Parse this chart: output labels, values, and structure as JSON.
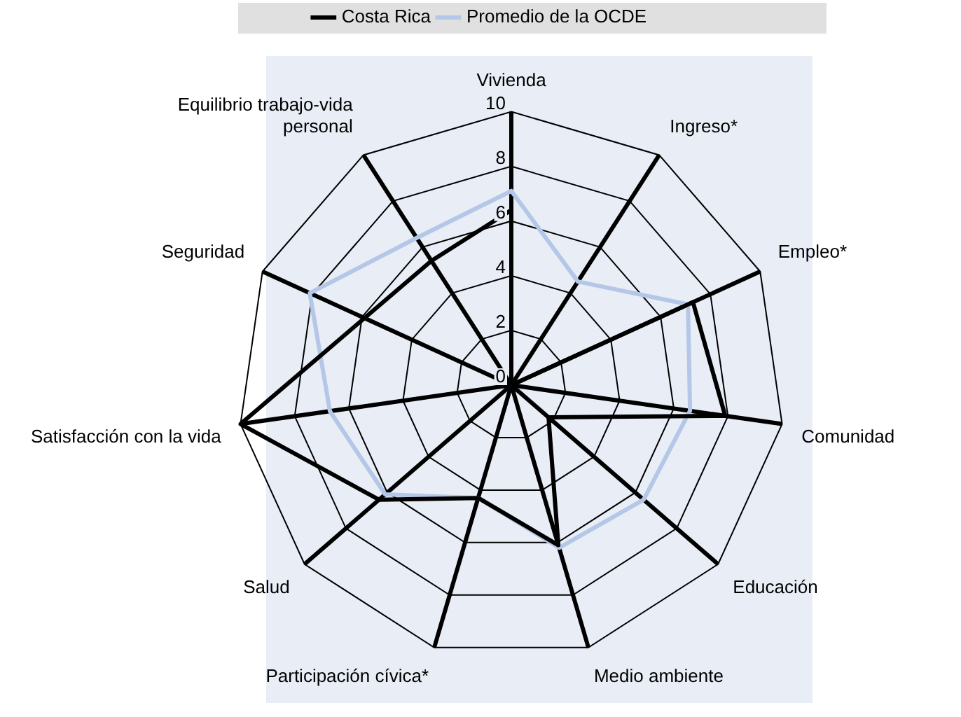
{
  "chart_data": {
    "type": "radar",
    "categories": [
      "Vivienda",
      "Ingreso*",
      "Empleo*",
      "Comunidad",
      "Educación",
      "Medio ambiente",
      "Participación cívica*",
      "Salud",
      "Satisfacción con la vida",
      "Seguridad",
      "Equilibrio trabajo-vida personal"
    ],
    "series": [
      {
        "name": "Costa Rica",
        "color": "#000000",
        "values": [
          6.4,
          0,
          7.3,
          7.9,
          1.8,
          6.1,
          4.3,
          6.4,
          10,
          5.9,
          5.4
        ]
      },
      {
        "name": "Promedio de la OCDE",
        "color": "#b4c7e7",
        "values": [
          7.1,
          4.5,
          7.1,
          6.6,
          6.4,
          6.2,
          4.3,
          6.1,
          6.7,
          8.1,
          6.4
        ]
      }
    ],
    "ylim": [
      0,
      10
    ],
    "yticks": [
      0,
      2,
      4,
      6,
      8,
      10
    ],
    "legend": "top",
    "marker": "none"
  }
}
